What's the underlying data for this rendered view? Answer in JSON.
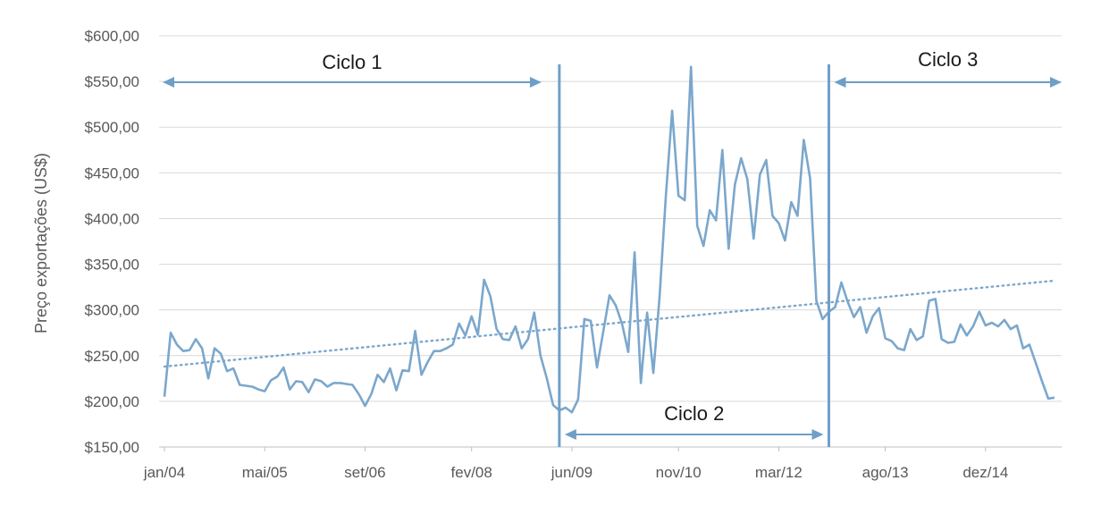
{
  "chart_data": {
    "type": "line",
    "ylabel": "Preço exportações (US$)",
    "ylim": [
      150,
      600
    ],
    "yticks": [
      {
        "value": 150,
        "label": "$150,00"
      },
      {
        "value": 200,
        "label": "$200,00"
      },
      {
        "value": 250,
        "label": "$250,00"
      },
      {
        "value": 300,
        "label": "$300,00"
      },
      {
        "value": 350,
        "label": "$350,00"
      },
      {
        "value": 400,
        "label": "$400,00"
      },
      {
        "value": 450,
        "label": "$450,00"
      },
      {
        "value": 500,
        "label": "$500,00"
      },
      {
        "value": 550,
        "label": "$550,00"
      },
      {
        "value": 600,
        "label": "$600,00"
      }
    ],
    "xticks": [
      {
        "month_index": 0,
        "label": "jan/04"
      },
      {
        "month_index": 16,
        "label": "mai/05"
      },
      {
        "month_index": 32,
        "label": "set/06"
      },
      {
        "month_index": 49,
        "label": "fev/08"
      },
      {
        "month_index": 65,
        "label": "jun/09"
      },
      {
        "month_index": 82,
        "label": "nov/10"
      },
      {
        "month_index": 98,
        "label": "mar/12"
      },
      {
        "month_index": 115,
        "label": "ago/13"
      },
      {
        "month_index": 131,
        "label": "dez/14"
      }
    ],
    "grid": true,
    "series": [
      {
        "values": [
          205,
          275,
          262,
          255,
          256,
          268,
          258,
          225,
          258,
          252,
          233,
          236,
          218,
          217,
          216,
          213,
          211,
          223,
          227,
          237,
          213,
          222,
          221,
          210,
          224,
          222,
          216,
          220,
          220,
          219,
          218,
          208,
          195,
          208,
          229,
          221,
          236,
          212,
          234,
          233,
          277,
          229,
          243,
          255,
          255,
          258,
          262,
          285,
          272,
          293,
          273,
          333,
          315,
          279,
          268,
          267,
          282,
          258,
          268,
          297,
          250,
          225,
          196,
          190,
          193,
          188,
          202,
          290,
          288,
          237,
          276,
          316,
          305,
          285,
          254,
          363,
          220,
          297,
          231,
          315,
          425,
          518,
          425,
          420,
          566,
          392,
          370,
          409,
          398,
          475,
          367,
          437,
          466,
          443,
          378,
          448,
          464,
          403,
          395,
          376,
          418,
          403,
          486,
          444,
          310,
          290,
          298,
          303,
          330,
          309,
          292,
          303,
          275,
          293,
          302,
          269,
          266,
          258,
          256,
          279,
          267,
          271,
          310,
          312,
          268,
          264,
          265,
          284,
          272,
          282,
          298,
          283,
          286,
          282,
          289,
          279,
          283,
          258,
          262,
          242,
          222,
          203,
          204
        ],
        "trend": [
          238,
          332
        ]
      }
    ],
    "cycles": [
      {
        "label": "Ciclo 1",
        "start": 0,
        "end": 62
      },
      {
        "label": "Ciclo 2",
        "start": 63,
        "end": 105
      },
      {
        "label": "Ciclo 3",
        "start": 106,
        "end": 144
      }
    ],
    "dividers": [
      63,
      106
    ]
  }
}
